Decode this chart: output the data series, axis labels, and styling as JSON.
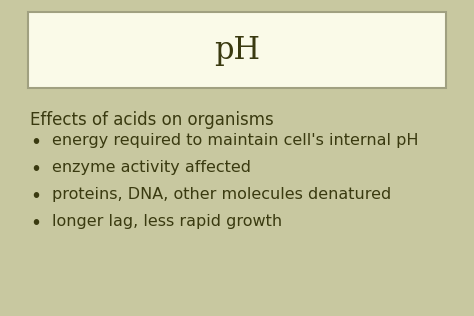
{
  "title": "pH",
  "bg_color": "#f0f0d0",
  "slide_border_color": "#b8b898",
  "title_box_color": "#fafae8",
  "title_box_border": "#a0a080",
  "title_fontsize": 22,
  "text_color": "#3a3a10",
  "header_text": "Effects of acids on organisms",
  "header_fontsize": 12,
  "bullet_fontsize": 11.5,
  "bullets": [
    "energy required to maintain cell's internal pH",
    "enzyme activity affected",
    "proteins, DNA, other molecules denatured",
    "longer lag, less rapid growth"
  ],
  "outer_bg": "#c8c8a0"
}
